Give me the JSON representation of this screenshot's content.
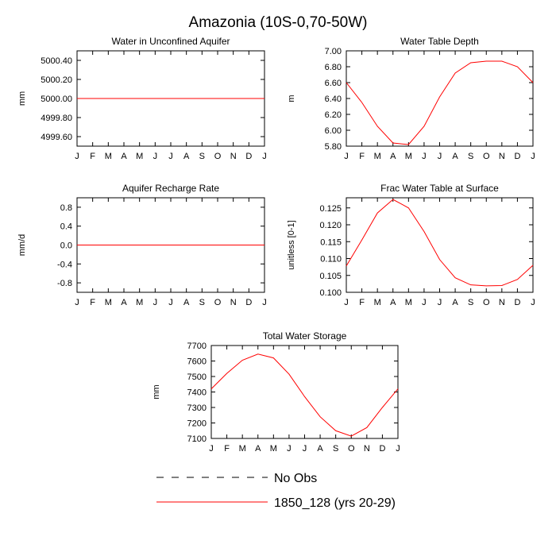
{
  "figure": {
    "title": "Amazonia (10S-0,70-50W)"
  },
  "legend": {
    "items": [
      {
        "label": "No Obs",
        "color": "#000000",
        "dash": "dashed"
      },
      {
        "label": "1850_128 (yrs 20-29)",
        "color": "#ff0000",
        "dash": "solid"
      }
    ]
  },
  "chart_data": [
    {
      "type": "line",
      "title": "Water in Unconfined Aquifer",
      "xlabel": "",
      "ylabel": "mm",
      "categories": [
        "J",
        "F",
        "M",
        "A",
        "M",
        "J",
        "J",
        "A",
        "S",
        "O",
        "N",
        "D",
        "J"
      ],
      "ylim": [
        4999.5,
        5000.5
      ],
      "yticks": [
        4999.6,
        4999.8,
        5000.0,
        5000.2,
        5000.4
      ],
      "ytick_labels": [
        "4999.60",
        "4999.80",
        "5000.00",
        "5000.20",
        "5000.40"
      ],
      "series": [
        {
          "name": "1850_128 (yrs 20-29)",
          "color": "#ff0000",
          "values": [
            5000,
            5000,
            5000,
            5000,
            5000,
            5000,
            5000,
            5000,
            5000,
            5000,
            5000,
            5000,
            5000
          ]
        }
      ]
    },
    {
      "type": "line",
      "title": "Water Table Depth",
      "xlabel": "",
      "ylabel": "m",
      "categories": [
        "J",
        "F",
        "M",
        "A",
        "M",
        "J",
        "J",
        "A",
        "S",
        "O",
        "N",
        "D",
        "J"
      ],
      "ylim": [
        5.8,
        7.0
      ],
      "yticks": [
        5.8,
        6.0,
        6.2,
        6.4,
        6.6,
        6.8,
        7.0
      ],
      "ytick_labels": [
        "5.80",
        "6.00",
        "6.20",
        "6.40",
        "6.60",
        "6.80",
        "7.00"
      ],
      "series": [
        {
          "name": "1850_128 (yrs 20-29)",
          "color": "#ff0000",
          "values": [
            6.6,
            6.35,
            6.05,
            5.84,
            5.82,
            6.05,
            6.42,
            6.72,
            6.85,
            6.87,
            6.87,
            6.8,
            6.6
          ]
        }
      ]
    },
    {
      "type": "line",
      "title": "Aquifer Recharge Rate",
      "xlabel": "",
      "ylabel": "mm/d",
      "categories": [
        "J",
        "F",
        "M",
        "A",
        "M",
        "J",
        "J",
        "A",
        "S",
        "O",
        "N",
        "D",
        "J"
      ],
      "ylim": [
        -1.0,
        1.0
      ],
      "yticks": [
        -0.8,
        -0.4,
        0.0,
        0.4,
        0.8
      ],
      "ytick_labels": [
        "-0.8",
        "-0.4",
        "0.0",
        "0.4",
        "0.8"
      ],
      "series": [
        {
          "name": "1850_128 (yrs 20-29)",
          "color": "#ff0000",
          "values": [
            0,
            0,
            0,
            0,
            0,
            0,
            0,
            0,
            0,
            0,
            0,
            0,
            0
          ]
        }
      ]
    },
    {
      "type": "line",
      "title": "Frac Water Table at Surface",
      "xlabel": "",
      "ylabel": "unitless [0-1]",
      "categories": [
        "J",
        "F",
        "M",
        "A",
        "M",
        "J",
        "J",
        "A",
        "S",
        "O",
        "N",
        "D",
        "J"
      ],
      "ylim": [
        0.1,
        0.128
      ],
      "yticks": [
        0.1,
        0.105,
        0.11,
        0.115,
        0.12,
        0.125
      ],
      "ytick_labels": [
        "0.100",
        "0.105",
        "0.110",
        "0.115",
        "0.120",
        "0.125"
      ],
      "series": [
        {
          "name": "1850_128 (yrs 20-29)",
          "color": "#ff0000",
          "values": [
            0.1078,
            0.1155,
            0.1235,
            0.1275,
            0.125,
            0.118,
            0.1097,
            0.1043,
            0.1022,
            0.1019,
            0.102,
            0.1038,
            0.108
          ]
        }
      ]
    },
    {
      "type": "line",
      "title": "Total Water Storage",
      "xlabel": "",
      "ylabel": "mm",
      "categories": [
        "J",
        "F",
        "M",
        "A",
        "M",
        "J",
        "J",
        "A",
        "S",
        "O",
        "N",
        "D",
        "J"
      ],
      "ylim": [
        7100,
        7700
      ],
      "yticks": [
        7100,
        7200,
        7300,
        7400,
        7500,
        7600,
        7700
      ],
      "ytick_labels": [
        "7100",
        "7200",
        "7300",
        "7400",
        "7500",
        "7600",
        "7700"
      ],
      "series": [
        {
          "name": "1850_128 (yrs 20-29)",
          "color": "#ff0000",
          "values": [
            7420,
            7520,
            7605,
            7645,
            7620,
            7515,
            7370,
            7240,
            7150,
            7115,
            7170,
            7300,
            7420
          ]
        }
      ]
    }
  ]
}
